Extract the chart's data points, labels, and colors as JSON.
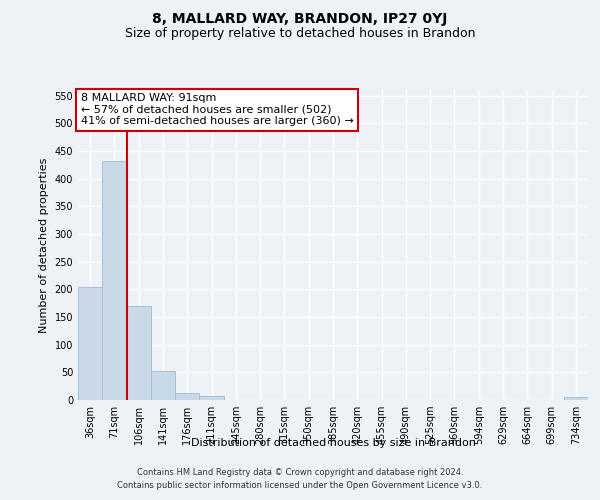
{
  "title": "8, MALLARD WAY, BRANDON, IP27 0YJ",
  "subtitle": "Size of property relative to detached houses in Brandon",
  "xlabel": "Distribution of detached houses by size in Brandon",
  "ylabel": "Number of detached properties",
  "bar_color": "#c9d9e8",
  "bar_edge_color": "#a8c0d4",
  "categories": [
    "36sqm",
    "71sqm",
    "106sqm",
    "141sqm",
    "176sqm",
    "211sqm",
    "245sqm",
    "280sqm",
    "315sqm",
    "350sqm",
    "385sqm",
    "420sqm",
    "455sqm",
    "490sqm",
    "525sqm",
    "560sqm",
    "594sqm",
    "629sqm",
    "664sqm",
    "699sqm",
    "734sqm"
  ],
  "values": [
    205,
    432,
    170,
    53,
    13,
    7,
    0,
    0,
    0,
    0,
    0,
    0,
    0,
    0,
    0,
    0,
    0,
    0,
    0,
    0,
    5
  ],
  "ylim": [
    0,
    560
  ],
  "yticks": [
    0,
    50,
    100,
    150,
    200,
    250,
    300,
    350,
    400,
    450,
    500,
    550
  ],
  "vline_x": 1.5,
  "annotation_title": "8 MALLARD WAY: 91sqm",
  "annotation_line1": "← 57% of detached houses are smaller (502)",
  "annotation_line2": "41% of semi-detached houses are larger (360) →",
  "footer1": "Contains HM Land Registry data © Crown copyright and database right 2024.",
  "footer2": "Contains public sector information licensed under the Open Government Licence v3.0.",
  "background_color": "#eef2f7",
  "grid_color": "#ffffff",
  "vline_color": "#cc0000",
  "title_fontsize": 10,
  "subtitle_fontsize": 9,
  "axis_label_fontsize": 8,
  "tick_fontsize": 7,
  "annotation_fontsize": 8,
  "footer_fontsize": 6
}
